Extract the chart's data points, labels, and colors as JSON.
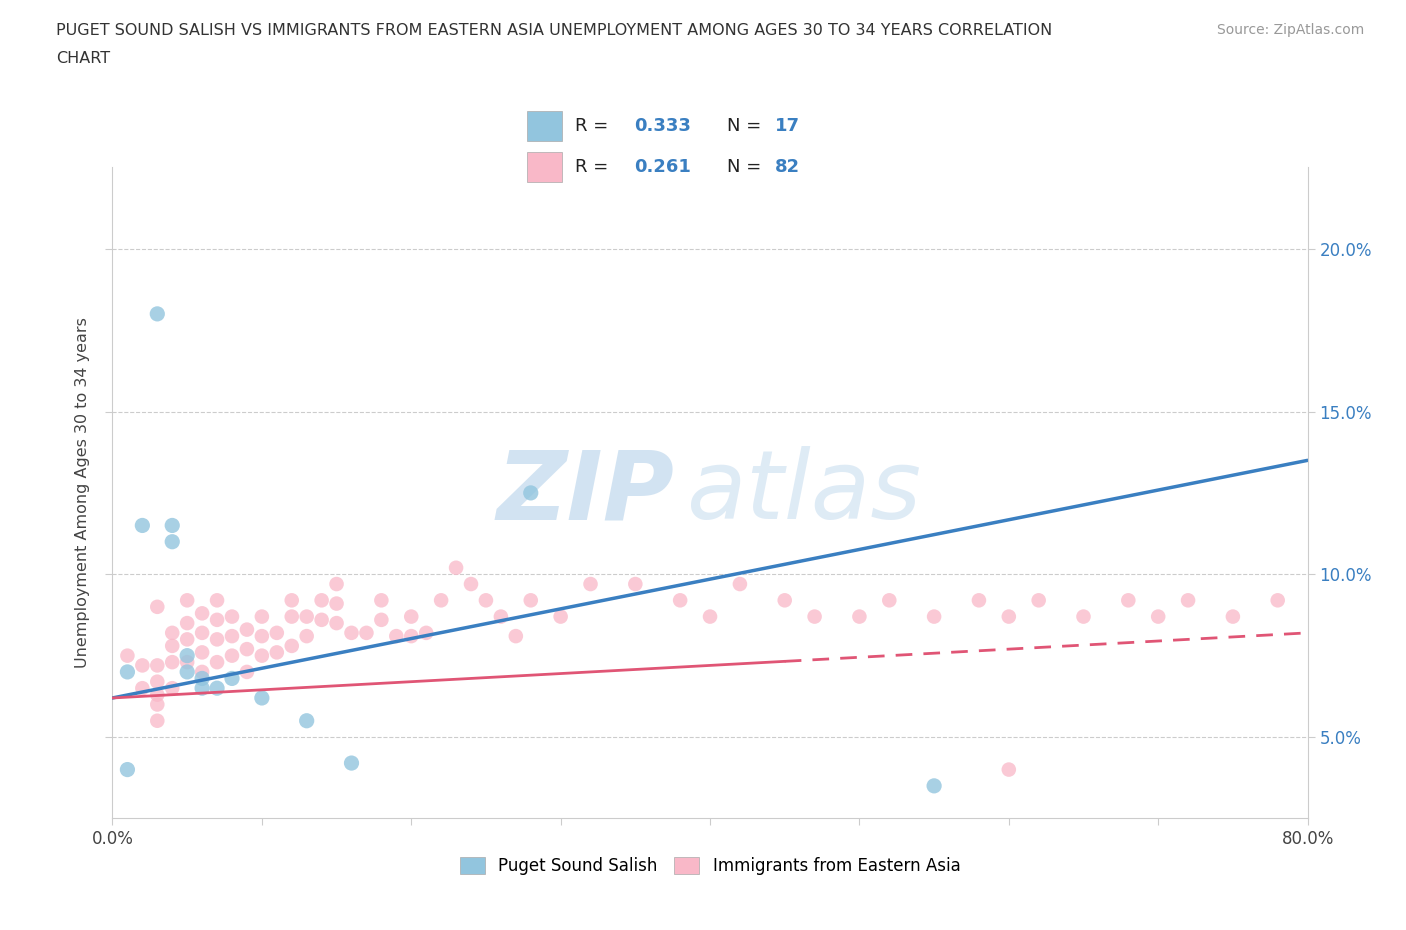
{
  "title_line1": "PUGET SOUND SALISH VS IMMIGRANTS FROM EASTERN ASIA UNEMPLOYMENT AMONG AGES 30 TO 34 YEARS CORRELATION",
  "title_line2": "CHART",
  "source": "Source: ZipAtlas.com",
  "ylabel": "Unemployment Among Ages 30 to 34 years",
  "xlim": [
    0.0,
    0.8
  ],
  "ylim": [
    0.025,
    0.225
  ],
  "x_ticks": [
    0.0,
    0.1,
    0.2,
    0.3,
    0.4,
    0.5,
    0.6,
    0.7,
    0.8
  ],
  "y_ticks": [
    0.05,
    0.1,
    0.15,
    0.2
  ],
  "y_tick_labels": [
    "5.0%",
    "10.0%",
    "15.0%",
    "20.0%"
  ],
  "R_blue": 0.333,
  "N_blue": 17,
  "R_pink": 0.261,
  "N_pink": 82,
  "blue_color": "#92C5DE",
  "pink_color": "#F9B8C8",
  "line_blue": "#3A7FC1",
  "line_pink": "#E05575",
  "watermark_zip": "ZIP",
  "watermark_atlas": "atlas",
  "blue_scatter_x": [
    0.01,
    0.02,
    0.03,
    0.04,
    0.04,
    0.05,
    0.05,
    0.06,
    0.06,
    0.07,
    0.08,
    0.1,
    0.13,
    0.16,
    0.28,
    0.55,
    0.01
  ],
  "blue_scatter_y": [
    0.07,
    0.115,
    0.18,
    0.115,
    0.11,
    0.075,
    0.07,
    0.068,
    0.065,
    0.065,
    0.068,
    0.062,
    0.055,
    0.042,
    0.125,
    0.035,
    0.04
  ],
  "pink_scatter_x": [
    0.01,
    0.02,
    0.02,
    0.03,
    0.03,
    0.03,
    0.03,
    0.03,
    0.03,
    0.04,
    0.04,
    0.04,
    0.04,
    0.05,
    0.05,
    0.05,
    0.05,
    0.06,
    0.06,
    0.06,
    0.06,
    0.07,
    0.07,
    0.07,
    0.07,
    0.08,
    0.08,
    0.08,
    0.09,
    0.09,
    0.09,
    0.1,
    0.1,
    0.1,
    0.11,
    0.11,
    0.12,
    0.12,
    0.12,
    0.13,
    0.13,
    0.14,
    0.14,
    0.15,
    0.15,
    0.15,
    0.16,
    0.17,
    0.18,
    0.18,
    0.19,
    0.2,
    0.2,
    0.21,
    0.22,
    0.23,
    0.24,
    0.25,
    0.26,
    0.27,
    0.28,
    0.3,
    0.32,
    0.35,
    0.38,
    0.4,
    0.42,
    0.45,
    0.47,
    0.5,
    0.52,
    0.55,
    0.58,
    0.6,
    0.62,
    0.65,
    0.68,
    0.7,
    0.72,
    0.75,
    0.78,
    0.6
  ],
  "pink_scatter_y": [
    0.075,
    0.072,
    0.065,
    0.072,
    0.067,
    0.063,
    0.06,
    0.055,
    0.09,
    0.082,
    0.078,
    0.073,
    0.065,
    0.092,
    0.085,
    0.08,
    0.073,
    0.088,
    0.082,
    0.076,
    0.07,
    0.092,
    0.086,
    0.08,
    0.073,
    0.087,
    0.081,
    0.075,
    0.083,
    0.077,
    0.07,
    0.087,
    0.081,
    0.075,
    0.082,
    0.076,
    0.092,
    0.087,
    0.078,
    0.087,
    0.081,
    0.092,
    0.086,
    0.097,
    0.091,
    0.085,
    0.082,
    0.082,
    0.092,
    0.086,
    0.081,
    0.087,
    0.081,
    0.082,
    0.092,
    0.102,
    0.097,
    0.092,
    0.087,
    0.081,
    0.092,
    0.087,
    0.097,
    0.097,
    0.092,
    0.087,
    0.097,
    0.092,
    0.087,
    0.087,
    0.092,
    0.087,
    0.092,
    0.087,
    0.092,
    0.087,
    0.092,
    0.087,
    0.092,
    0.087,
    0.092,
    0.04
  ],
  "grid_color": "#CCCCCC",
  "background_color": "#FFFFFF",
  "blue_line_x0": 0.0,
  "blue_line_y0": 0.062,
  "blue_line_x1": 0.8,
  "blue_line_y1": 0.135,
  "pink_line_x0": 0.0,
  "pink_line_y0": 0.062,
  "pink_line_x1": 0.8,
  "pink_line_y1": 0.082
}
